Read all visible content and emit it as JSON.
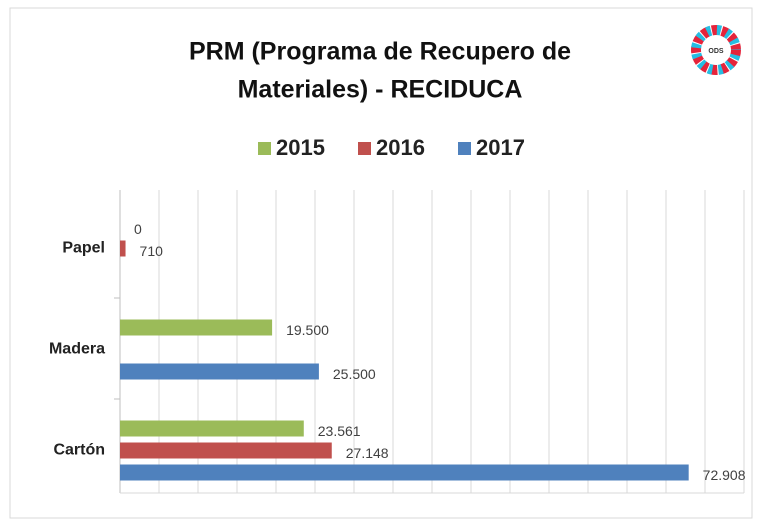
{
  "chart_data": {
    "type": "hbar",
    "title": [
      "PRM (Programa de Recupero de",
      "Materiales) - RECIDUCA"
    ],
    "logo_text": "ODS",
    "categories": [
      "Papel",
      "Madera",
      "Cartón"
    ],
    "series": [
      {
        "name": "2015",
        "color": "#9bbb59",
        "values": [
          0,
          19500,
          23561
        ],
        "value_labels": [
          "0",
          "19.500",
          "23.561"
        ]
      },
      {
        "name": "2016",
        "color": "#c0504d",
        "values": [
          710,
          null,
          27148
        ],
        "value_labels": [
          "710",
          null,
          "27.148"
        ]
      },
      {
        "name": "2017",
        "color": "#4f81bd",
        "values": [
          null,
          25500,
          72908
        ],
        "value_labels": [
          null,
          "25.500",
          "72.908"
        ]
      }
    ],
    "xlim": [
      0,
      80000
    ],
    "xticks": [
      0,
      5000,
      10000,
      15000,
      20000,
      25000,
      30000,
      35000,
      40000,
      45000,
      50000,
      55000,
      60000,
      65000,
      70000,
      75000,
      80000
    ],
    "grid": true
  }
}
